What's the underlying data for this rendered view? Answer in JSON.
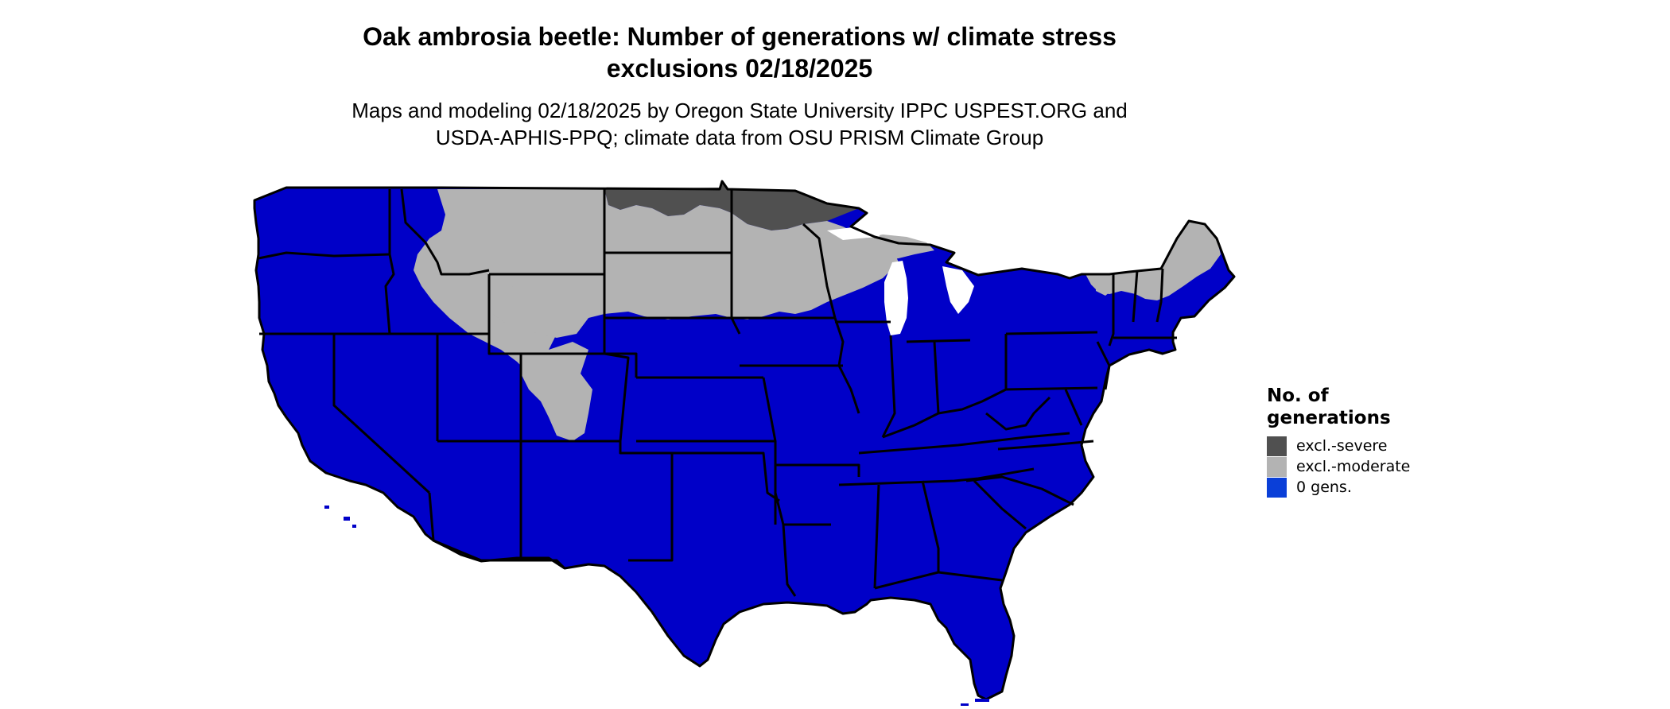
{
  "title": {
    "line1": "Oak ambrosia beetle: Number of generations w/ climate stress",
    "line2": "exclusions 02/18/2025"
  },
  "subtitle": {
    "line1": "Maps and modeling 02/18/2025 by Oregon State University IPPC USPEST.ORG and",
    "line2": "USDA-APHIS-PPQ; climate data from OSU PRISM Climate Group"
  },
  "legend": {
    "title_line1": "No. of",
    "title_line2": "generations",
    "items": [
      {
        "label": "excl.-severe",
        "color": "#505050"
      },
      {
        "label": "excl.-moderate",
        "color": "#b3b3b3"
      },
      {
        "label": "0 gens.",
        "color": "#0a3fd8"
      }
    ]
  },
  "map": {
    "colors": {
      "base": "#0000c8",
      "moderate": "#b3b3b3",
      "severe": "#505050",
      "border": "#000000"
    }
  }
}
